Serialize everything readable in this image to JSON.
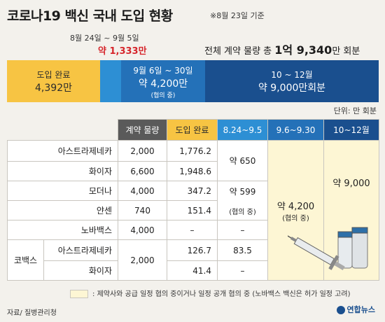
{
  "title": "코로나19 백신 국내 도입 현황",
  "basis": "※8월 23일 기준",
  "sub_period": "8월 24일 ~ 9월 5일",
  "sub_total": "약 1,333만",
  "total_prefix": "전체 계약 물량  총",
  "total_value": "1억 9,340",
  "total_suffix": "만 회분",
  "bars": {
    "b1_l1": "도입 완료",
    "b1_l2": "4,392만",
    "b3_l1": "9월 6일 ~ 30일",
    "b3_l2": "약 4,200만",
    "b3_l3": "(협의 중)",
    "b4_l1": "10 ~ 12월",
    "b4_l2": "약 9,000만회분"
  },
  "unit": "단위: 만 회분",
  "chart_data": {
    "type": "table",
    "title": "코로나19 백신 국내 도입 현황",
    "headers": [
      "계약 물량",
      "도입 완료",
      "8.24~9.5",
      "9.6~9.30",
      "10~12월"
    ],
    "rows": [
      {
        "vaccine": "아스트라제네카",
        "contract": "2,000",
        "done": "1,776.2"
      },
      {
        "vaccine": "화이자",
        "contract": "6,600",
        "done": "1,948.6"
      },
      {
        "vaccine": "모더나",
        "contract": "4,000",
        "done": "347.2"
      },
      {
        "vaccine": "얀센",
        "contract": "740",
        "done": "151.4"
      },
      {
        "vaccine": "노바백스",
        "contract": "4,000",
        "done": "–"
      },
      {
        "vaccine": "아스트라제네카",
        "contract": "",
        "done": "126.7"
      },
      {
        "vaccine": "화이자",
        "contract": "",
        "done": "41.4"
      }
    ],
    "covax": {
      "group": "코백스",
      "contract": "2,000"
    },
    "aug_sep": {
      "az_pfizer": "약 650",
      "moderna": "약 599",
      "janssen": "(협의 중)",
      "novavax": "–",
      "covax_az": "83.5",
      "covax_pfizer": "–"
    },
    "sep": {
      "value": "약 4,200",
      "note": "(협의 중)"
    },
    "q4": {
      "value": "약 9,000"
    }
  },
  "legend": "제약사와 공급 일정 협의 중이거나 일정 공개 협의 중 (노바백스 백신은 허가 일정 고려)",
  "legend_colon": ":",
  "source": "자료/ 질병관리청",
  "logo": "연합뉴스",
  "colors": {
    "yellow": "#f7c443",
    "blue1": "#2d8fd4",
    "blue2": "#2471b8",
    "blue3": "#1a4f8e",
    "red": "#d6252b"
  }
}
